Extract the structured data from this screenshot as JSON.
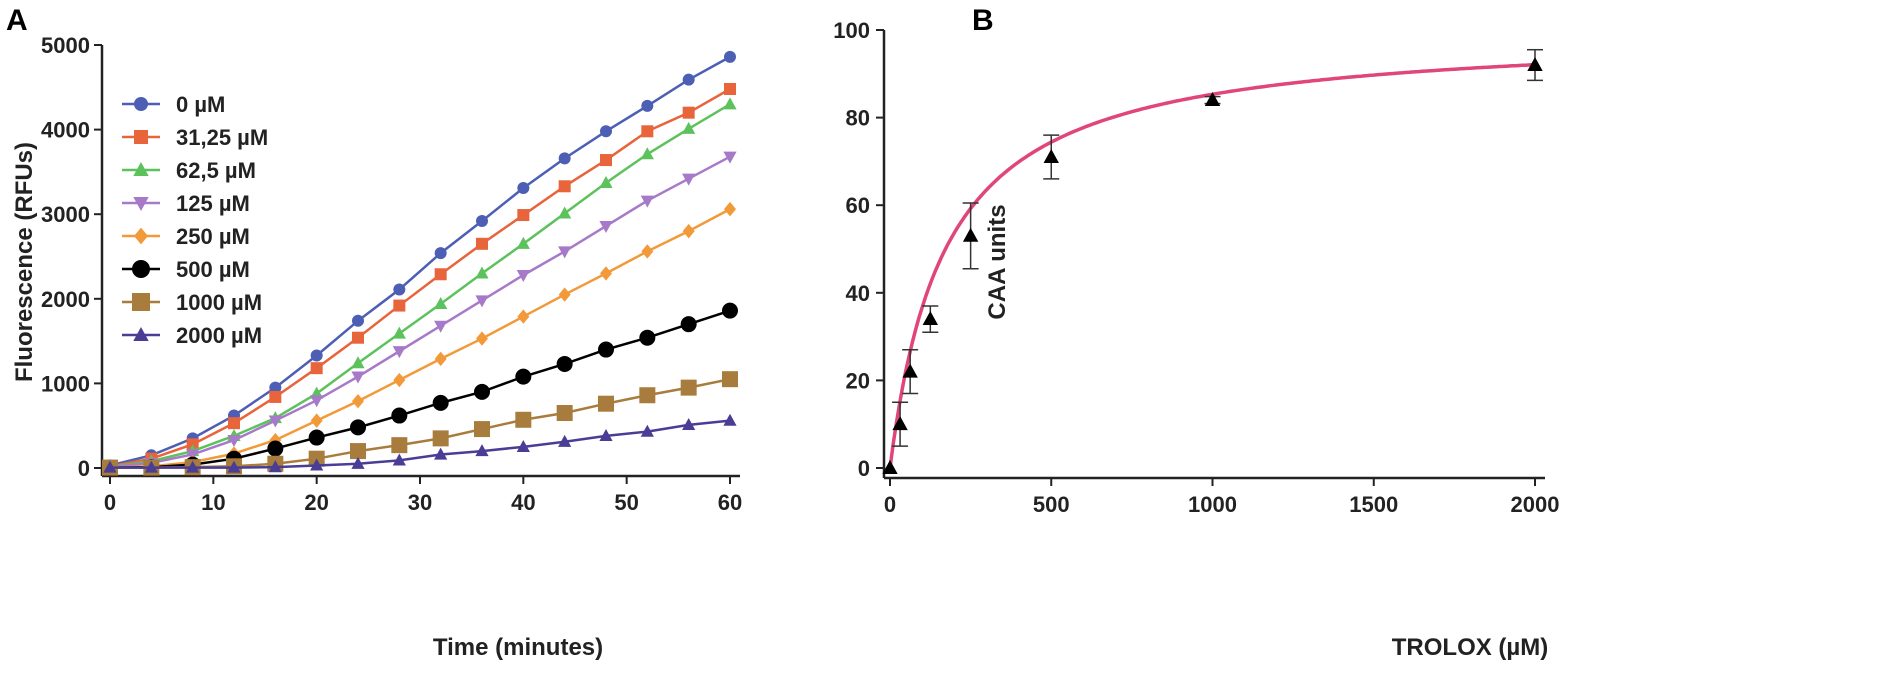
{
  "figure": {
    "panel_a_label": "A",
    "panel_b_label": "B"
  },
  "chart_data": [
    {
      "type": "line",
      "panel": "A",
      "xlabel": "Time (minutes)",
      "ylabel": "Fluorescence (RFUs)",
      "xlim": [
        0,
        60
      ],
      "ylim": [
        0,
        5000
      ],
      "xticks": [
        0,
        10,
        20,
        30,
        40,
        50,
        60
      ],
      "yticks": [
        0,
        1000,
        2000,
        3000,
        4000,
        5000
      ],
      "x": [
        0,
        4,
        8,
        12,
        16,
        20,
        24,
        28,
        32,
        36,
        40,
        44,
        48,
        52,
        56,
        60
      ],
      "legend_position": "top-left",
      "series": [
        {
          "name": "0 µM",
          "color": "#4d5eb5",
          "marker": "circle",
          "values": [
            30,
            150,
            350,
            620,
            950,
            1330,
            1740,
            2110,
            2540,
            2920,
            3310,
            3660,
            3980,
            4280,
            4590,
            4860
          ]
        },
        {
          "name": "31,25 µM",
          "color": "#e8643b",
          "marker": "square",
          "values": [
            20,
            110,
            280,
            530,
            840,
            1180,
            1540,
            1920,
            2290,
            2650,
            2990,
            3330,
            3640,
            3980,
            4200,
            4480
          ]
        },
        {
          "name": "62,5 µM",
          "color": "#5cc25c",
          "marker": "triangle",
          "values": [
            15,
            80,
            200,
            380,
            590,
            880,
            1240,
            1590,
            1940,
            2300,
            2650,
            3010,
            3370,
            3710,
            4010,
            4300
          ]
        },
        {
          "name": "125 µM",
          "color": "#a77ac9",
          "marker": "triangle-down",
          "values": [
            10,
            60,
            160,
            330,
            560,
            800,
            1080,
            1380,
            1680,
            1980,
            2280,
            2560,
            2860,
            3160,
            3420,
            3680
          ]
        },
        {
          "name": "250 µM",
          "color": "#f29a3a",
          "marker": "diamond",
          "values": [
            5,
            20,
            70,
            170,
            330,
            560,
            790,
            1040,
            1290,
            1530,
            1790,
            2050,
            2300,
            2560,
            2800,
            3060
          ]
        },
        {
          "name": "500 µM",
          "color": "#000000",
          "marker": "circle",
          "values": [
            5,
            10,
            40,
            110,
            230,
            360,
            480,
            620,
            770,
            900,
            1080,
            1230,
            1400,
            1540,
            1700,
            1860
          ]
        },
        {
          "name": "1000 µM",
          "color": "#a87c3c",
          "marker": "square",
          "values": [
            5,
            5,
            10,
            20,
            50,
            110,
            200,
            270,
            350,
            460,
            570,
            650,
            760,
            860,
            950,
            1050
          ]
        },
        {
          "name": "2000 µM",
          "color": "#4a3d96",
          "marker": "triangle",
          "values": [
            5,
            5,
            5,
            5,
            10,
            30,
            50,
            90,
            160,
            200,
            250,
            310,
            380,
            430,
            510,
            560
          ]
        }
      ]
    },
    {
      "type": "scatter",
      "panel": "B",
      "xlabel": "TROLOX (µM)",
      "ylabel": "CAA units",
      "xlim": [
        0,
        2000
      ],
      "ylim": [
        0,
        100
      ],
      "xticks": [
        0,
        500,
        1000,
        1500,
        2000
      ],
      "yticks": [
        0,
        20,
        40,
        60,
        80,
        100
      ],
      "points": [
        {
          "x": 0,
          "y": 0,
          "err": 0
        },
        {
          "x": 31.25,
          "y": 10,
          "err": 5
        },
        {
          "x": 62.5,
          "y": 22,
          "err": 5
        },
        {
          "x": 125,
          "y": 34,
          "err": 3
        },
        {
          "x": 250,
          "y": 53,
          "err": 7.5
        },
        {
          "x": 500,
          "y": 71,
          "err": 5
        },
        {
          "x": 1000,
          "y": 84,
          "err": 0.8
        },
        {
          "x": 2000,
          "y": 92,
          "err": 3.5
        }
      ],
      "fit": {
        "type": "hyperbolic",
        "ymax": 100,
        "k": 172
      },
      "point_color": "#000000",
      "fit_color": "#e0457b"
    }
  ]
}
